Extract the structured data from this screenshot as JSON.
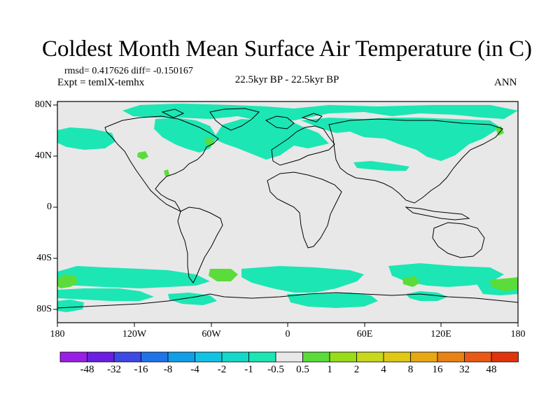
{
  "title": "Coldest Month Mean Surface Air Temperature (in C)",
  "stats": "rmsd= 0.417626 diff= -0.150167",
  "experiment": "Expt = temlX-temhx",
  "period": "22.5kyr BP - 22.5kyr BP",
  "season": "ANN",
  "lat_labels": [
    "80N",
    "40N",
    "0",
    "40S",
    "80S"
  ],
  "lon_labels": [
    "180",
    "120W",
    "60W",
    "0",
    "60E",
    "120E",
    "180"
  ],
  "colorbar": {
    "colors": [
      "#9a1fe6",
      "#6a1fe0",
      "#3e48e4",
      "#1f74e8",
      "#139ee8",
      "#12c3e3",
      "#14d8c8",
      "#1ce6b4",
      "#e8e8e8",
      "#5adc3a",
      "#98dc1a",
      "#c8d81a",
      "#e0c814",
      "#e8a814",
      "#e88214",
      "#e85a14",
      "#e0340c"
    ],
    "labels": [
      "-48",
      "-32",
      "-16",
      "-8",
      "-4",
      "-2",
      "-1",
      "-0.5",
      "0.5",
      "1",
      "2",
      "4",
      "8",
      "16",
      "32",
      "48"
    ]
  }
}
